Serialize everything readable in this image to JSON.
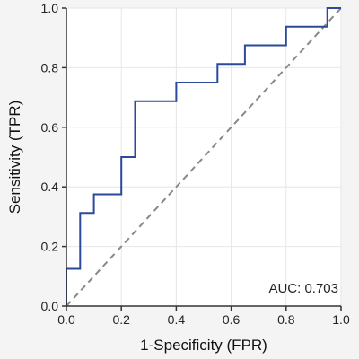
{
  "chart_data": {
    "type": "line",
    "xlabel": "1-Specificity (FPR)",
    "ylabel": "Sensitivity (TPR)",
    "xlim": [
      0,
      1
    ],
    "ylim": [
      0,
      1
    ],
    "x_ticks": [
      0.0,
      0.2,
      0.4,
      0.6,
      0.8,
      1.0
    ],
    "y_ticks": [
      0.0,
      0.2,
      0.4,
      0.6,
      0.8,
      1.0
    ],
    "x_tick_labels": [
      "0.0",
      "0.2",
      "0.4",
      "0.6",
      "0.8",
      "1.0"
    ],
    "y_tick_labels": [
      "0.0",
      "0.2",
      "0.4",
      "0.6",
      "0.8",
      "1.0"
    ],
    "grid": true,
    "annotation": "AUC: 0.703",
    "series": [
      {
        "style": "step",
        "color": "#2b4a9a",
        "x": [
          0.0,
          0.0,
          0.05,
          0.05,
          0.1,
          0.1,
          0.2,
          0.2,
          0.25,
          0.25,
          0.4,
          0.4,
          0.55,
          0.55,
          0.65,
          0.65,
          0.8,
          0.8,
          0.95,
          0.95,
          1.0
        ],
        "y": [
          0.0,
          0.125,
          0.125,
          0.3125,
          0.3125,
          0.375,
          0.375,
          0.5,
          0.5,
          0.6875,
          0.6875,
          0.75,
          0.75,
          0.8125,
          0.8125,
          0.875,
          0.875,
          0.9375,
          0.9375,
          1.0,
          1.0
        ]
      }
    ],
    "reference_line": {
      "style": "dashed",
      "color": "#888888",
      "x": [
        0,
        1
      ],
      "y": [
        0,
        1
      ]
    }
  }
}
